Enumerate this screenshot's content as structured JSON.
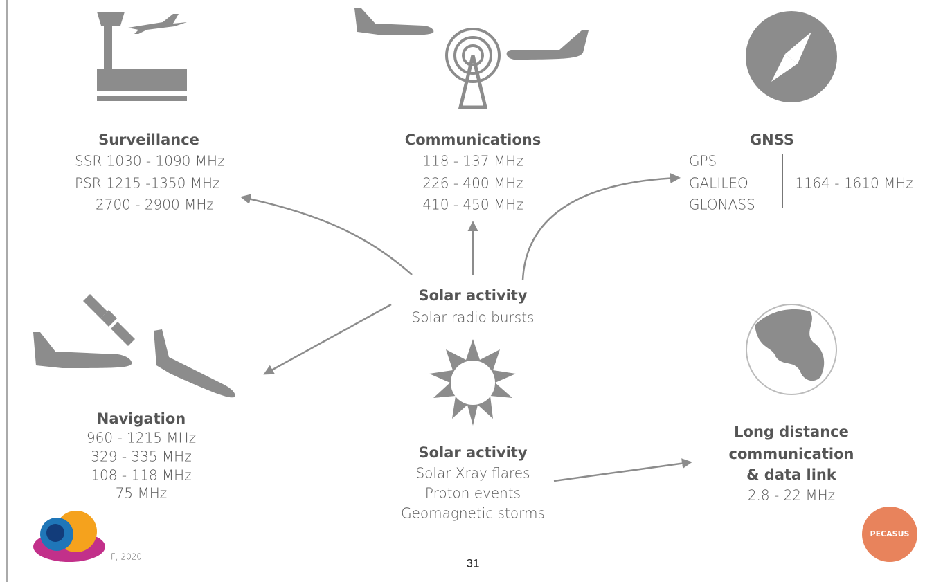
{
  "surveillance": {
    "title": "Surveillance",
    "lines": [
      "SSR 1030 - 1090 MHz",
      "PSR 1215 -1350 MHz",
      "2700 - 2900 MHz"
    ]
  },
  "communications": {
    "title": "Communications",
    "lines": [
      "118 - 137 MHz",
      "226 - 400 MHz",
      "410 - 450 MHz"
    ]
  },
  "gnss": {
    "title": "GNSS",
    "systems": [
      "GPS",
      "GALILEO",
      "GLONASS"
    ],
    "band": "1164 - 1610 MHz"
  },
  "solar_radio": {
    "title": "Solar activity",
    "lines": [
      "Solar radio bursts"
    ]
  },
  "navigation": {
    "title": "Navigation",
    "lines": [
      "960 - 1215 MHz",
      "329 - 335 MHz",
      "108 - 118 MHz",
      "75 MHz"
    ]
  },
  "solar_flares": {
    "title": "Solar activity",
    "lines": [
      "Solar Xray flares",
      "Proton events",
      "Geomagnetic storms"
    ]
  },
  "long_distance": {
    "title": [
      "Long distance",
      "communication",
      "& data link"
    ],
    "lines": [
      "2.8 - 22 MHz"
    ]
  },
  "footer": {
    "credit": "F, 2020",
    "page": "31",
    "logo": "PECASUS"
  }
}
